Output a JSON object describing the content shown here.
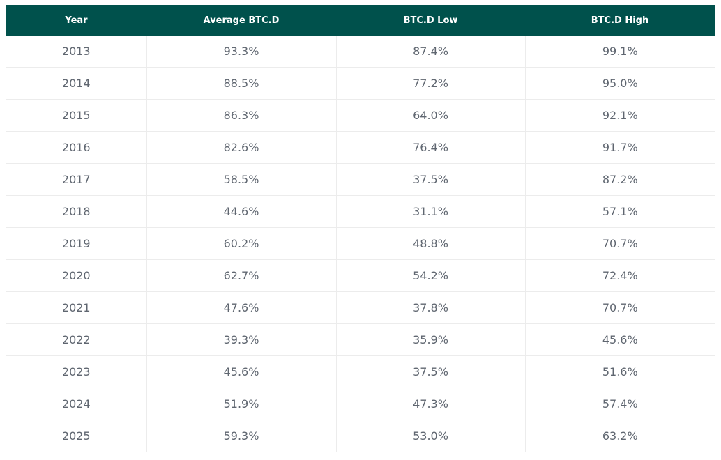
{
  "table": {
    "header": [
      "Year",
      "Average BTC.D",
      "BTC.D Low",
      "BTC.D High"
    ],
    "rows": [
      [
        "2013",
        "93.3%",
        "87.4%",
        "99.1%"
      ],
      [
        "2014",
        "88.5%",
        "77.2%",
        "95.0%"
      ],
      [
        "2015",
        "86.3%",
        "64.0%",
        "92.1%"
      ],
      [
        "2016",
        "82.6%",
        "76.4%",
        "91.7%"
      ],
      [
        "2017",
        "58.5%",
        "37.5%",
        "87.2%"
      ],
      [
        "2018",
        "44.6%",
        "31.1%",
        "57.1%"
      ],
      [
        "2019",
        "60.2%",
        "48.8%",
        "70.7%"
      ],
      [
        "2020",
        "62.7%",
        "54.2%",
        "72.4%"
      ],
      [
        "2021",
        "47.6%",
        "37.8%",
        "70.7%"
      ],
      [
        "2022",
        "39.3%",
        "35.9%",
        "45.6%"
      ],
      [
        "2023",
        "45.6%",
        "37.5%",
        "51.6%"
      ],
      [
        "2024",
        "51.9%",
        "47.3%",
        "57.4%"
      ],
      [
        "2025",
        "59.3%",
        "53.0%",
        "63.2%"
      ]
    ]
  }
}
